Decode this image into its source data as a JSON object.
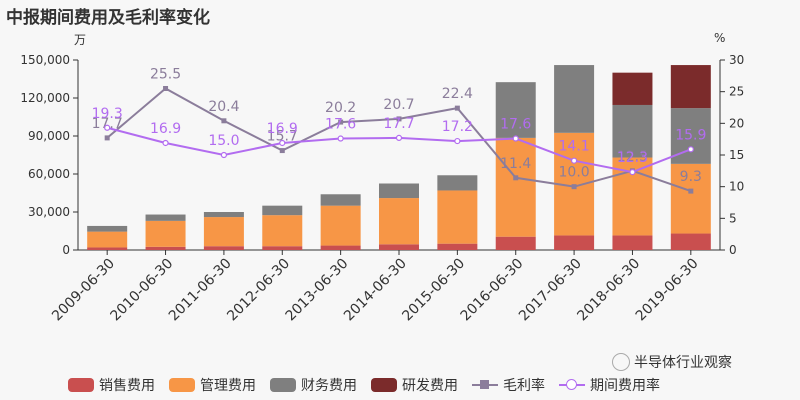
{
  "title": "中报期间费用及毛利率变化",
  "units": {
    "left": "万",
    "right": "%"
  },
  "watermark": "半导体行业观察",
  "colors": {
    "sales": "#c94f4f",
    "admin": "#f79646",
    "finance": "#7f7f7f",
    "rnd": "#7b2b2b",
    "gross": "#8b7d9b",
    "period": "#b26cf0"
  },
  "chart_data": {
    "type": "bar",
    "title": "中报期间费用及毛利率变化",
    "categories": [
      "2009-06-30",
      "2010-06-30",
      "2011-06-30",
      "2012-06-30",
      "2013-06-30",
      "2014-06-30",
      "2015-06-30",
      "2016-06-30",
      "2017-06-30",
      "2018-06-30",
      "2019-06-30"
    ],
    "y_left": {
      "ticks": [
        "0",
        "30,000",
        "60,000",
        "90,000",
        "120,000",
        "150,000"
      ],
      "ylim": [
        0,
        150000
      ]
    },
    "y_right": {
      "ticks": [
        "0",
        "5",
        "10",
        "15",
        "20",
        "25",
        "30"
      ],
      "ylim": [
        0,
        30
      ]
    },
    "series": [
      {
        "name": "销售费用",
        "key": "sales",
        "kind": "bar",
        "values": [
          2000,
          2500,
          3000,
          3000,
          3500,
          4500,
          5000,
          10500,
          11500,
          11500,
          13000
        ]
      },
      {
        "name": "管理费用",
        "key": "admin",
        "kind": "bar",
        "values": [
          12500,
          20500,
          23000,
          24500,
          31500,
          36500,
          42000,
          78000,
          81000,
          61500,
          55000
        ]
      },
      {
        "name": "财务费用",
        "key": "finance",
        "kind": "bar",
        "values": [
          4500,
          5000,
          4000,
          7500,
          9000,
          11500,
          12000,
          44000,
          53500,
          41500,
          44000
        ]
      },
      {
        "name": "研发费用",
        "key": "rnd",
        "kind": "bar",
        "values": [
          0,
          0,
          0,
          0,
          0,
          0,
          0,
          0,
          0,
          25500,
          34000
        ]
      },
      {
        "name": "毛利率",
        "key": "gross",
        "kind": "line",
        "marker": "square",
        "values": [
          17.7,
          25.5,
          20.4,
          15.7,
          20.2,
          20.7,
          22.4,
          11.4,
          10.0,
          12.5,
          9.3
        ],
        "labels": [
          "17.7",
          "25.5",
          "20.4",
          "15.7",
          "20.2",
          "20.7",
          "22.4",
          "11.4",
          "10.0",
          "12.5",
          "9.3"
        ]
      },
      {
        "name": "期间费用率",
        "key": "period",
        "kind": "line",
        "marker": "circle",
        "values": [
          19.3,
          16.9,
          15.0,
          16.9,
          17.6,
          17.7,
          17.2,
          17.6,
          14.1,
          12.3,
          15.9
        ],
        "labels": [
          "19.3",
          "16.9",
          "15.0",
          "16.9",
          "17.6",
          "17.7",
          "17.2",
          "17.6",
          "14.1",
          "12.3",
          "15.9"
        ]
      }
    ],
    "grid": false,
    "legend_position": "bottom"
  }
}
